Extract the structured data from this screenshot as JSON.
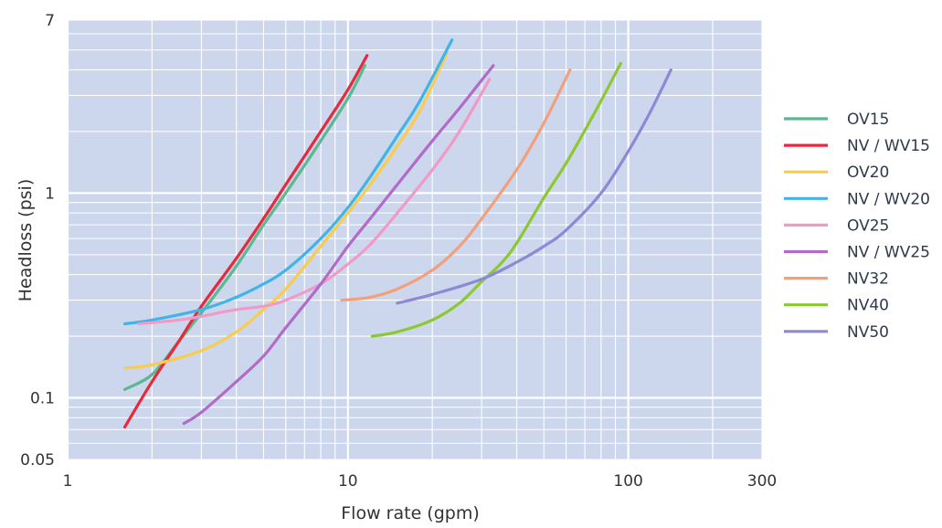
{
  "chart_data": {
    "type": "line",
    "title": "",
    "xlabel": "Flow rate (gpm)",
    "ylabel": "Headloss (psi)",
    "x_scale": "log",
    "y_scale": "log",
    "xlim": [
      1,
      300
    ],
    "ylim": [
      0.05,
      7
    ],
    "x_tick_labels": [
      {
        "value": 1,
        "label": "1"
      },
      {
        "value": 10,
        "label": "10"
      },
      {
        "value": 100,
        "label": "100"
      },
      {
        "value": 300,
        "label": "300"
      }
    ],
    "y_tick_labels": [
      {
        "value": 7,
        "label": "7"
      },
      {
        "value": 1,
        "label": "1"
      },
      {
        "value": 0.1,
        "label": "0.1"
      },
      {
        "value": 0.05,
        "label": "0.05"
      }
    ],
    "grid": true,
    "background_color": "#ccd6ec",
    "grid_color": "#ffffff",
    "legend_position": "right",
    "series": [
      {
        "name": "OV15",
        "color": "#5cb890",
        "x": [
          1.6,
          2.0,
          2.5,
          3,
          4,
          5,
          6,
          8,
          10,
          11.5
        ],
        "y": [
          0.11,
          0.13,
          0.19,
          0.26,
          0.44,
          0.7,
          1.0,
          1.8,
          2.9,
          4.2
        ]
      },
      {
        "name": "NV / WV15",
        "color": "#e8283c",
        "x": [
          1.6,
          2.0,
          2.5,
          3,
          4,
          5,
          6,
          8,
          10,
          11.7
        ],
        "y": [
          0.072,
          0.12,
          0.19,
          0.28,
          0.48,
          0.75,
          1.1,
          2.0,
          3.2,
          4.7
        ]
      },
      {
        "name": "OV20",
        "color": "#f8cc4e",
        "x": [
          1.6,
          2,
          3,
          4,
          5,
          6,
          8,
          10,
          12,
          15,
          18,
          22.5
        ],
        "y": [
          0.14,
          0.145,
          0.17,
          0.21,
          0.27,
          0.34,
          0.55,
          0.8,
          1.1,
          1.7,
          2.5,
          4.8
        ]
      },
      {
        "name": "NV / WV20",
        "color": "#40b4e8",
        "x": [
          1.6,
          2,
          3,
          4,
          5,
          6,
          8,
          10,
          12,
          15,
          18,
          23.5
        ],
        "y": [
          0.23,
          0.24,
          0.27,
          0.31,
          0.36,
          0.42,
          0.6,
          0.85,
          1.2,
          1.9,
          2.8,
          5.6
        ]
      },
      {
        "name": "OV25",
        "color": "#f09ac8",
        "x": [
          1.8,
          2.5,
          3,
          4,
          5,
          6,
          8,
          10,
          12,
          15,
          20,
          25,
          32
        ],
        "y": [
          0.23,
          0.24,
          0.25,
          0.27,
          0.28,
          0.3,
          0.36,
          0.45,
          0.56,
          0.8,
          1.3,
          2.0,
          3.6
        ]
      },
      {
        "name": "NV / WV25",
        "color": "#b06cc8",
        "x": [
          2.6,
          3,
          4,
          5,
          6,
          8,
          10,
          12,
          15,
          20,
          25,
          33
        ],
        "y": [
          0.075,
          0.085,
          0.12,
          0.16,
          0.22,
          0.36,
          0.55,
          0.75,
          1.1,
          1.8,
          2.6,
          4.2
        ]
      },
      {
        "name": "NV32",
        "color": "#f2a07a",
        "x": [
          9.5,
          12,
          15,
          20,
          25,
          30,
          40,
          50,
          62
        ],
        "y": [
          0.3,
          0.31,
          0.34,
          0.42,
          0.55,
          0.75,
          1.3,
          2.2,
          4.0
        ]
      },
      {
        "name": "NV40",
        "color": "#8cc830",
        "x": [
          12.2,
          15,
          20,
          25,
          30,
          35,
          40,
          50,
          60,
          75,
          94
        ],
        "y": [
          0.2,
          0.21,
          0.24,
          0.29,
          0.37,
          0.45,
          0.57,
          0.95,
          1.4,
          2.4,
          4.3
        ]
      },
      {
        "name": "NV50",
        "color": "#8c8ad4",
        "x": [
          15,
          20,
          30,
          40,
          50,
          60,
          80,
          100,
          120,
          142
        ],
        "y": [
          0.29,
          0.32,
          0.38,
          0.46,
          0.55,
          0.66,
          1.0,
          1.6,
          2.5,
          4.0
        ]
      }
    ]
  }
}
